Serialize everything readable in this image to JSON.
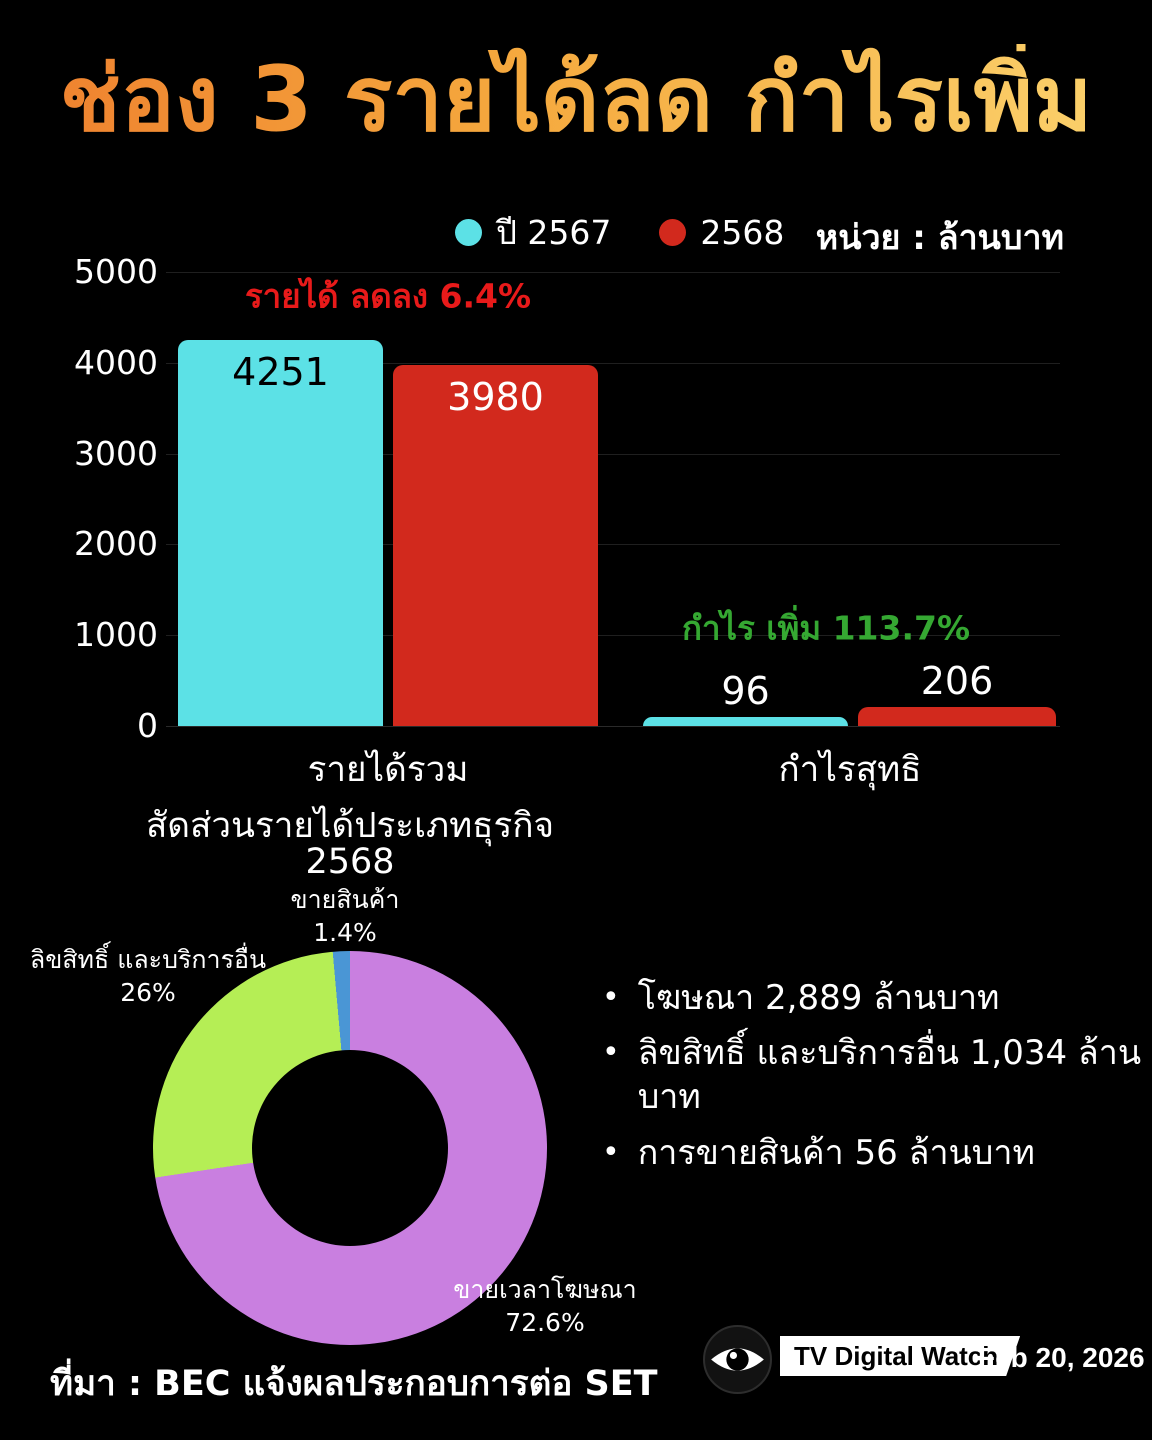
{
  "page": {
    "title": "ช่อง 3 รายได้ลด กำไรเพิ่ม",
    "unit_label": "หน่วย :  ล้านบาท",
    "source": "ที่มา : BEC แจ้งผลประกอบการต่อ SET",
    "brand": "TV Digital Watch",
    "date": "Feb 20, 2026"
  },
  "colors": {
    "background": "#000000",
    "title_gradient": [
      "#ee7f2e",
      "#f5a93e",
      "#fbd36e"
    ],
    "year_2567": "#5ce1e6",
    "year_2568": "#d2291d",
    "revenue_annotation": "#e81a1a",
    "profit_annotation": "#35a832",
    "pie_ads": "#c97fe0",
    "pie_license": "#b5ee55",
    "pie_goods": "#4a96d5"
  },
  "chart_data": [
    {
      "type": "bar",
      "unit": "ล้านบาท",
      "categories": [
        "รายได้รวม",
        "กำไรสุทธิ"
      ],
      "series": [
        {
          "name": "ปี 2567",
          "color": "#5ce1e6",
          "values": [
            4251,
            96
          ]
        },
        {
          "name": "2568",
          "color": "#d2291d",
          "values": [
            3980,
            206
          ]
        }
      ],
      "ylim": [
        0,
        5000
      ],
      "yticks": [
        0,
        1000,
        2000,
        3000,
        4000,
        5000
      ],
      "grid": true,
      "legend_position": "top",
      "annotations": [
        {
          "text": "รายได้ ลดลง 6.4%",
          "color": "#e81a1a",
          "category": "รายได้รวม"
        },
        {
          "text": "กำไร เพิ่ม 113.7%",
          "color": "#35a832",
          "category": "กำไรสุทธิ"
        }
      ]
    },
    {
      "type": "pie",
      "donut": true,
      "title": "สัดส่วนรายได้ประเภทธุรกิจ",
      "subtitle": "2568",
      "start_angle_deg": 0,
      "direction": "clockwise",
      "slices": [
        {
          "label": "ขายเวลาโฆษณา",
          "value": 72.6,
          "color": "#c97fe0"
        },
        {
          "label": "ลิขสิทธิ์ และบริการอื่น",
          "value": 26,
          "color": "#b5ee55"
        },
        {
          "label": "ขายสินค้า",
          "value": 1.4,
          "color": "#4a96d5"
        }
      ]
    }
  ],
  "bullets": [
    "โฆษณา 2,889 ล้านบาท",
    "ลิขสิทธิ์ และบริการอื่น 1,034 ล้านบาท",
    "การขายสินค้า 56 ล้านบาท"
  ]
}
